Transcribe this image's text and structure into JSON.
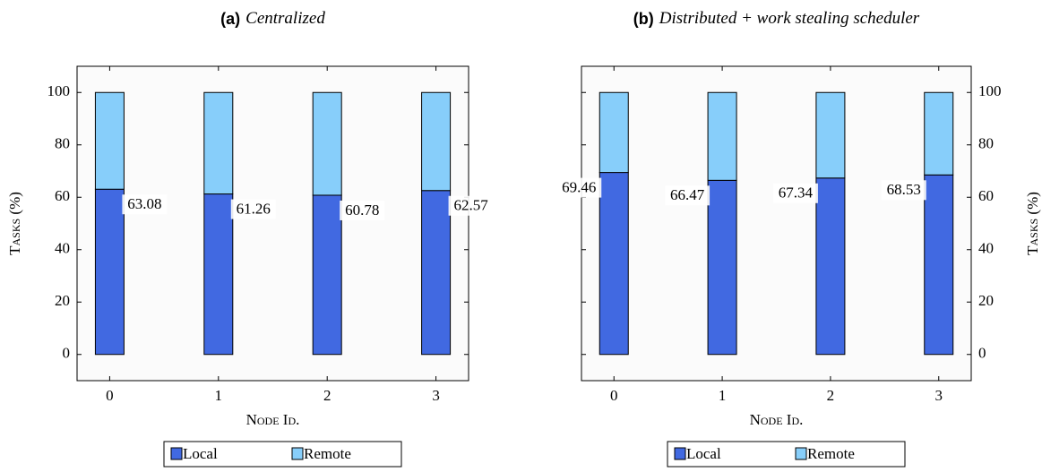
{
  "chart_data": [
    {
      "type": "bar",
      "stacked": true,
      "panel": "(a)",
      "title": "Centralized",
      "xlabel": "Node Id.",
      "ylabel": "Tasks (%)",
      "x": [
        0,
        1,
        2,
        3
      ],
      "xlim": [
        -0.3,
        3.3
      ],
      "xticks": [
        0,
        1,
        2,
        3
      ],
      "ylim": [
        -10,
        110
      ],
      "yticks": [
        0,
        20,
        40,
        60,
        80,
        100
      ],
      "yaxis_side": "left",
      "label_side": "right",
      "legend": "bottom",
      "series": [
        {
          "name": "Local",
          "color": "#4169e1",
          "values": [
            63.08,
            61.26,
            60.78,
            62.57
          ],
          "labeled": true
        },
        {
          "name": "Remote",
          "color": "#87cefa",
          "values": [
            36.92,
            38.74,
            39.22,
            37.43
          ],
          "labeled": false
        }
      ]
    },
    {
      "type": "bar",
      "stacked": true,
      "panel": "(b)",
      "title": "Distributed + work stealing scheduler",
      "xlabel": "Node Id.",
      "ylabel": "Tasks (%)",
      "x": [
        0,
        1,
        2,
        3
      ],
      "xlim": [
        -0.3,
        3.3
      ],
      "xticks": [
        0,
        1,
        2,
        3
      ],
      "ylim": [
        -10,
        110
      ],
      "yticks": [
        0,
        20,
        40,
        60,
        80,
        100
      ],
      "yaxis_side": "right",
      "label_side": "left",
      "legend": "bottom",
      "series": [
        {
          "name": "Local",
          "color": "#4169e1",
          "values": [
            69.46,
            66.47,
            67.34,
            68.53
          ],
          "labeled": true
        },
        {
          "name": "Remote",
          "color": "#87cefa",
          "values": [
            30.54,
            33.53,
            32.66,
            31.47
          ],
          "labeled": false
        }
      ]
    }
  ]
}
